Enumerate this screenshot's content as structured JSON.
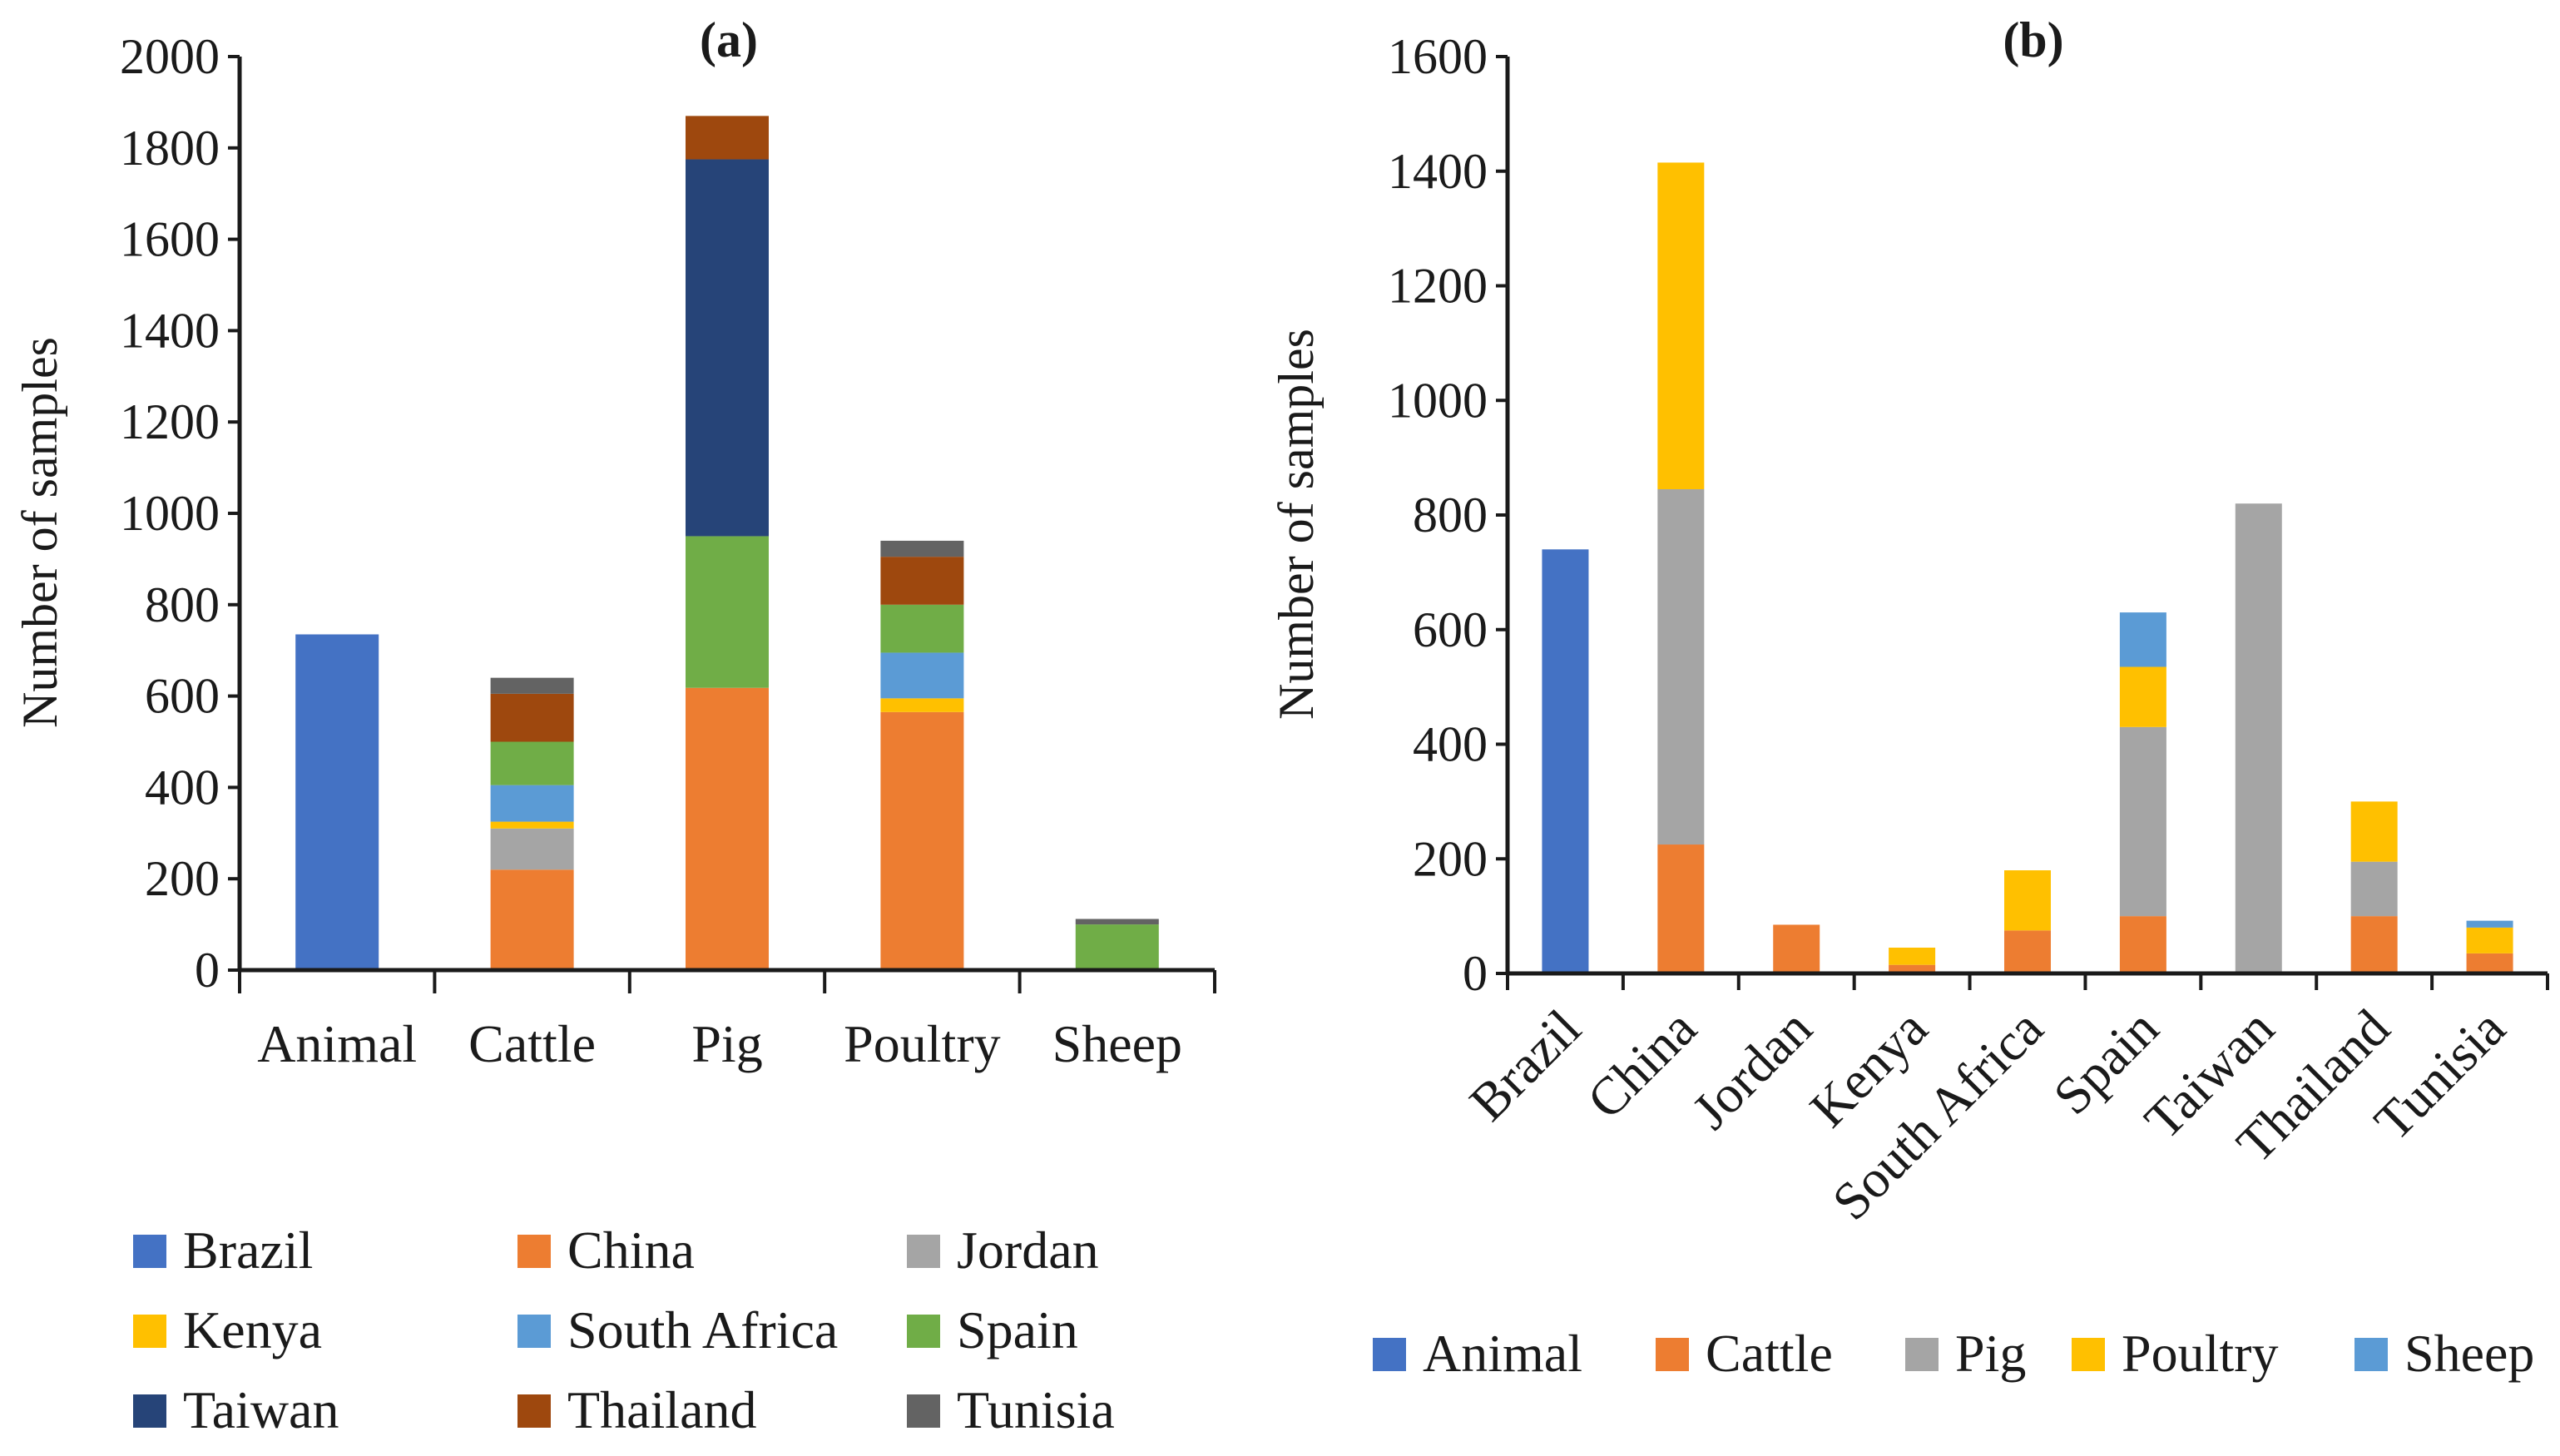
{
  "colors": {
    "Brazil": "#4472C4",
    "China": "#ED7D31",
    "Jordan": "#A5A5A5",
    "Kenya": "#FFC000",
    "South Africa": "#5B9BD5",
    "Spain": "#70AD47",
    "Taiwan": "#264478",
    "Thailand": "#9E480E",
    "Tunisia": "#636363",
    "Animal": "#4472C4",
    "Cattle": "#ED7D31",
    "Pig": "#A5A5A5",
    "Poultry": "#FFC000",
    "Sheep": "#5B9BD5"
  },
  "chart_data": [
    {
      "type": "bar",
      "stacked": true,
      "title": "(a)",
      "xlabel": "",
      "ylabel": "Number of samples",
      "ylim": [
        0,
        2000
      ],
      "yticks": [
        0,
        200,
        400,
        600,
        800,
        1000,
        1200,
        1400,
        1600,
        1800,
        2000
      ],
      "categories": [
        "Animal",
        "Cattle",
        "Pig",
        "Poultry",
        "Sheep"
      ],
      "series": [
        {
          "name": "Brazil",
          "values": [
            735,
            0,
            0,
            0,
            0
          ]
        },
        {
          "name": "China",
          "values": [
            0,
            220,
            618,
            565,
            0
          ]
        },
        {
          "name": "Jordan",
          "values": [
            0,
            90,
            0,
            0,
            0
          ]
        },
        {
          "name": "Kenya",
          "values": [
            0,
            15,
            0,
            30,
            0
          ]
        },
        {
          "name": "South Africa",
          "values": [
            0,
            80,
            0,
            100,
            0
          ]
        },
        {
          "name": "Spain",
          "values": [
            0,
            95,
            332,
            105,
            100
          ]
        },
        {
          "name": "Taiwan",
          "values": [
            0,
            0,
            825,
            0,
            0
          ]
        },
        {
          "name": "Thailand",
          "values": [
            0,
            105,
            95,
            105,
            0
          ]
        },
        {
          "name": "Tunisia",
          "values": [
            0,
            35,
            0,
            35,
            12
          ]
        }
      ],
      "legend": [
        "Brazil",
        "China",
        "Jordan",
        "Kenya",
        "South Africa",
        "Spain",
        "Taiwan",
        "Thailand",
        "Tunisia"
      ]
    },
    {
      "type": "bar",
      "stacked": true,
      "title": "(b)",
      "xlabel": "",
      "ylabel": "Number of samples",
      "ylim": [
        0,
        1600
      ],
      "yticks": [
        0,
        200,
        400,
        600,
        800,
        1000,
        1200,
        1400,
        1600
      ],
      "categories": [
        "Brazil",
        "China",
        "Jordan",
        "Kenya",
        "South Africa",
        "Spain",
        "Taiwan",
        "Thailand",
        "Tunisia"
      ],
      "series": [
        {
          "name": "Animal",
          "values": [
            740,
            0,
            0,
            0,
            0,
            0,
            0,
            0,
            0
          ]
        },
        {
          "name": "Cattle",
          "values": [
            0,
            225,
            85,
            15,
            75,
            100,
            0,
            100,
            35
          ]
        },
        {
          "name": "Pig",
          "values": [
            0,
            620,
            0,
            0,
            0,
            330,
            820,
            95,
            0
          ]
        },
        {
          "name": "Poultry",
          "values": [
            0,
            570,
            0,
            30,
            105,
            105,
            0,
            105,
            45
          ]
        },
        {
          "name": "Sheep",
          "values": [
            0,
            0,
            0,
            0,
            0,
            95,
            0,
            0,
            12
          ]
        }
      ],
      "legend": [
        "Animal",
        "Cattle",
        "Pig",
        "Poultry",
        "Sheep"
      ]
    }
  ]
}
